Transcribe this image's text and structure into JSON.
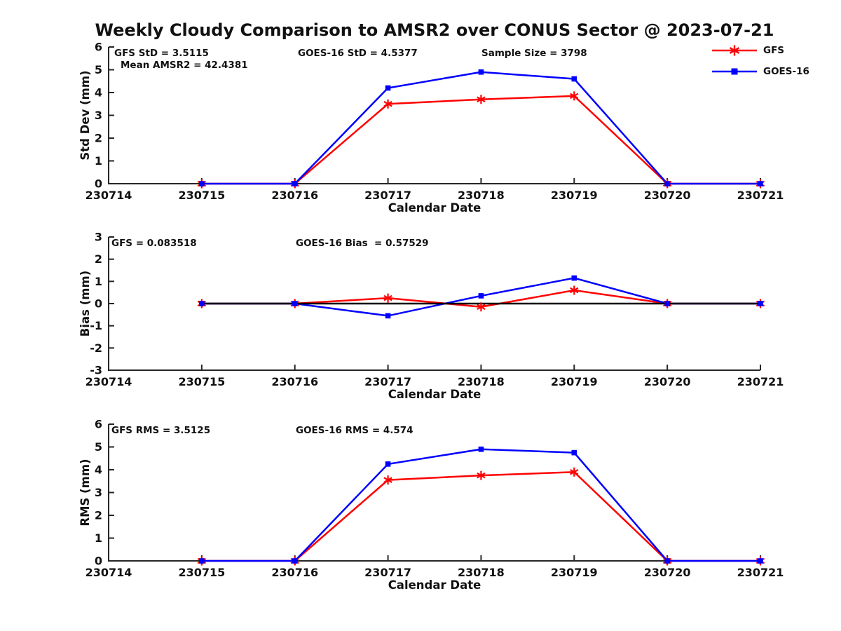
{
  "title": "Weekly Cloudy Comparison to AMSR2 over CONUS Sector @ 2023-07-21",
  "colors": {
    "gfs": "#ff0000",
    "goes16": "#0000ff",
    "axis": "#262626",
    "zero_line": "#000000"
  },
  "legend": {
    "items": [
      {
        "label": "GFS",
        "color": "#ff0000",
        "marker": "star"
      },
      {
        "label": "GOES-16",
        "color": "#0000ff",
        "marker": "square"
      }
    ]
  },
  "chart_data": [
    {
      "type": "line",
      "ylabel": "Std Dev (mm)",
      "xlabel": "Calendar Date",
      "ylim": [
        0,
        6
      ],
      "yticks": [
        0,
        1,
        2,
        3,
        4,
        5,
        6
      ],
      "x_tick_labels": [
        "230714",
        "230715",
        "230716",
        "230717",
        "230718",
        "230719",
        "230720",
        "230721"
      ],
      "x": [
        "230715",
        "230716",
        "230717",
        "230718",
        "230719",
        "230720",
        "230721"
      ],
      "zero_line": false,
      "grid": false,
      "legend_position": "upper-right-outside",
      "annotations": [
        "GFS StD = 3.5115",
        "Mean AMSR2 = 42.4381",
        "GOES-16 StD = 4.5377",
        "Sample Size = 3798"
      ],
      "series": [
        {
          "name": "GFS",
          "color": "#ff0000",
          "marker": "star",
          "values": [
            0,
            0,
            3.5,
            3.7,
            3.85,
            0,
            0
          ]
        },
        {
          "name": "GOES-16",
          "color": "#0000ff",
          "marker": "square",
          "values": [
            0,
            0,
            4.2,
            4.9,
            4.6,
            0,
            0
          ]
        }
      ]
    },
    {
      "type": "line",
      "ylabel": "Bias (mm)",
      "xlabel": "Calendar Date",
      "ylim": [
        -3,
        3
      ],
      "yticks": [
        -3,
        -2,
        -1,
        0,
        1,
        2,
        3
      ],
      "x_tick_labels": [
        "230714",
        "230715",
        "230716",
        "230717",
        "230718",
        "230719",
        "230720",
        "230721"
      ],
      "x": [
        "230715",
        "230716",
        "230717",
        "230718",
        "230719",
        "230720",
        "230721"
      ],
      "zero_line": true,
      "grid": false,
      "annotations": [
        "GFS = 0.083518",
        "GOES-16 Bias  = 0.57529"
      ],
      "series": [
        {
          "name": "GFS",
          "color": "#ff0000",
          "marker": "star",
          "values": [
            0,
            0,
            0.25,
            -0.15,
            0.6,
            0,
            0
          ]
        },
        {
          "name": "GOES-16",
          "color": "#0000ff",
          "marker": "square",
          "values": [
            0,
            0,
            -0.55,
            0.35,
            1.15,
            0,
            0
          ]
        }
      ]
    },
    {
      "type": "line",
      "ylabel": "RMS (mm)",
      "xlabel": "Calendar Date",
      "ylim": [
        0,
        6
      ],
      "yticks": [
        0,
        1,
        2,
        3,
        4,
        5,
        6
      ],
      "x_tick_labels": [
        "230714",
        "230715",
        "230716",
        "230717",
        "230718",
        "230719",
        "230720",
        "230721"
      ],
      "x": [
        "230715",
        "230716",
        "230717",
        "230718",
        "230719",
        "230720",
        "230721"
      ],
      "zero_line": false,
      "grid": false,
      "annotations": [
        "GFS RMS = 3.5125",
        "GOES-16 RMS = 4.574"
      ],
      "series": [
        {
          "name": "GFS",
          "color": "#ff0000",
          "marker": "star",
          "values": [
            0,
            0,
            3.55,
            3.75,
            3.9,
            0,
            0
          ]
        },
        {
          "name": "GOES-16",
          "color": "#0000ff",
          "marker": "square",
          "values": [
            0,
            0,
            4.25,
            4.9,
            4.75,
            0,
            0
          ]
        }
      ]
    }
  ]
}
